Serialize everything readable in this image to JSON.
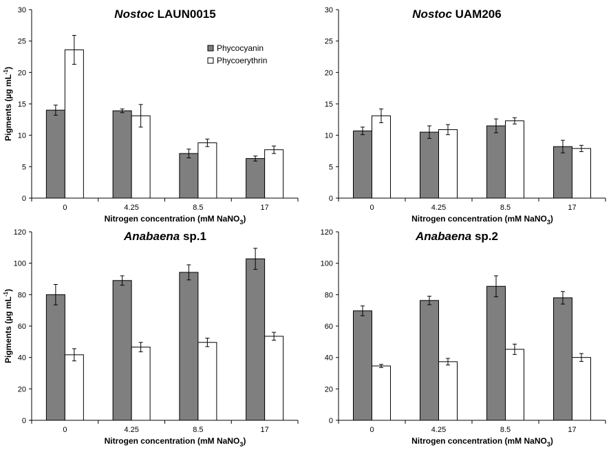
{
  "legend": {
    "series_names": [
      "Phycocyanin",
      "Phycoerythrin"
    ]
  },
  "colors": {
    "phycocyanin": "#7f7f7f",
    "phycoerythrin": "#ffffff",
    "outline": "#000000"
  },
  "chart_data": [
    {
      "type": "bar",
      "title_italic": "Nostoc",
      "title_rest": " LAUN0015",
      "xlabel": "Nitrogen concentration (mM NaNO",
      "xlabel_sub": "3",
      "xlabel_end": ")",
      "ylabel": "Pigments (µg mL",
      "ylabel_sup": "-1",
      "ylabel_end": ")",
      "categories": [
        "0",
        "4.25",
        "8.5",
        "17"
      ],
      "ylim": [
        0,
        30
      ],
      "yticks": [
        0,
        5,
        10,
        15,
        20,
        25,
        30
      ],
      "legend": true,
      "series": [
        {
          "name": "Phycocyanin",
          "values": [
            14.0,
            13.9,
            7.1,
            6.3
          ],
          "errors": [
            0.8,
            0.3,
            0.7,
            0.4
          ]
        },
        {
          "name": "Phycoerythrin",
          "values": [
            23.6,
            13.1,
            8.8,
            7.7
          ],
          "errors": [
            2.3,
            1.8,
            0.6,
            0.6
          ]
        }
      ]
    },
    {
      "type": "bar",
      "title_italic": "Nostoc",
      "title_rest": " UAM206",
      "xlabel": "Nitrogen concentration (mM NaNO",
      "xlabel_sub": "3",
      "xlabel_end": ")",
      "ylabel": "",
      "categories": [
        "0",
        "4.25",
        "8.5",
        "17"
      ],
      "ylim": [
        0,
        30
      ],
      "yticks": [
        0,
        5,
        10,
        15,
        20,
        25,
        30
      ],
      "legend": false,
      "series": [
        {
          "name": "Phycocyanin",
          "values": [
            10.7,
            10.5,
            11.5,
            8.2
          ],
          "errors": [
            0.6,
            1.0,
            1.1,
            1.0
          ]
        },
        {
          "name": "Phycoerythrin",
          "values": [
            13.1,
            10.9,
            12.3,
            7.9
          ],
          "errors": [
            1.1,
            0.8,
            0.5,
            0.5
          ]
        }
      ]
    },
    {
      "type": "bar",
      "title_italic": "Anabaena",
      "title_rest": " sp.1",
      "xlabel": "Nitrogen concentration (mM NaNO",
      "xlabel_sub": "3",
      "xlabel_end": ")",
      "ylabel": "Pigments (µg mL",
      "ylabel_sup": "-1",
      "ylabel_end": ")",
      "categories": [
        "0",
        "4.25",
        "8.5",
        "17"
      ],
      "ylim": [
        0,
        120
      ],
      "yticks": [
        0,
        20,
        40,
        60,
        80,
        100,
        120
      ],
      "legend": false,
      "series": [
        {
          "name": "Phycocyanin",
          "values": [
            80.0,
            89.0,
            94.2,
            102.8
          ],
          "errors": [
            6.5,
            3.0,
            4.8,
            6.7
          ]
        },
        {
          "name": "Phycoerythrin",
          "values": [
            41.7,
            46.6,
            49.6,
            53.5
          ],
          "errors": [
            3.9,
            3.0,
            2.7,
            2.5
          ]
        }
      ]
    },
    {
      "type": "bar",
      "title_italic": "Anabaena",
      "title_rest": " sp.2",
      "xlabel": "Nitrogen concentration (mM NaNO",
      "xlabel_sub": "3",
      "xlabel_end": ")",
      "ylabel": "",
      "categories": [
        "0",
        "4.25",
        "8.5",
        "17"
      ],
      "ylim": [
        0,
        120
      ],
      "yticks": [
        0,
        20,
        40,
        60,
        80,
        100,
        120
      ],
      "legend": false,
      "series": [
        {
          "name": "Phycocyanin",
          "values": [
            69.7,
            76.3,
            85.3,
            78.0
          ],
          "errors": [
            3.1,
            2.7,
            6.7,
            4.0
          ]
        },
        {
          "name": "Phycoerythrin",
          "values": [
            34.6,
            37.3,
            45.2,
            40.0
          ],
          "errors": [
            1.0,
            2.1,
            3.3,
            2.5
          ]
        }
      ]
    }
  ]
}
